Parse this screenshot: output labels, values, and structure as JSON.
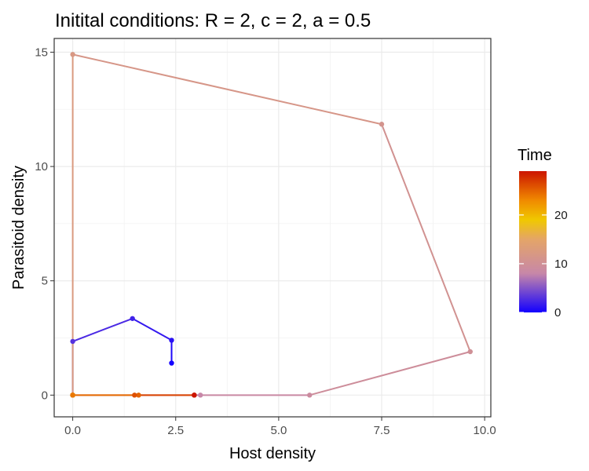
{
  "chart_data": {
    "type": "line",
    "title": "Initital conditions: R = 2, c = 2, a = 0.5",
    "xlabel": "Host density",
    "ylabel": "Parasitoid density",
    "xlim": [
      -0.45,
      10.15
    ],
    "ylim": [
      -0.95,
      15.6
    ],
    "xticks": [
      0,
      2.5,
      5,
      7.5,
      10
    ],
    "xtick_labels": [
      "0.0",
      "2.5",
      "5.0",
      "7.5",
      "10.0"
    ],
    "yticks": [
      0,
      5,
      10,
      15
    ],
    "ytick_labels": [
      "0",
      "5",
      "10",
      "15"
    ],
    "grid": true,
    "legend": {
      "title": "Time",
      "position": "right",
      "ticks": [
        0,
        10,
        20
      ],
      "tick_labels": [
        "0",
        "10",
        "20"
      ],
      "range": [
        0,
        29
      ],
      "gradient": [
        {
          "t": 0,
          "color": "#1200ff"
        },
        {
          "t": 8,
          "color": "#c787a8"
        },
        {
          "t": 15,
          "color": "#e4a568"
        },
        {
          "t": 19,
          "color": "#f0c800"
        },
        {
          "t": 23,
          "color": "#f08a00"
        },
        {
          "t": 29,
          "color": "#cc1500"
        }
      ]
    },
    "series": [
      {
        "points": [
          {
            "t": 0,
            "x": 2.4,
            "y": 1.4
          },
          {
            "t": 1,
            "x": 2.4,
            "y": 2.4
          },
          {
            "t": 2,
            "x": 1.45,
            "y": 3.35
          },
          {
            "t": 3,
            "x": 0.0,
            "y": 2.35
          },
          {
            "t": 4,
            "x": 0.0,
            "y": 0.0
          },
          {
            "t": 5,
            "x": 0.0,
            "y": 0.0
          },
          {
            "t": 6,
            "x": 0.0,
            "y": 0.0
          },
          {
            "t": 7,
            "x": 0.0,
            "y": 0.0
          },
          {
            "t": 8,
            "x": 3.1,
            "y": 0.0
          },
          {
            "t": 9,
            "x": 5.75,
            "y": 0.0
          },
          {
            "t": 10,
            "x": 9.65,
            "y": 1.9
          },
          {
            "t": 11,
            "x": 7.5,
            "y": 11.85
          },
          {
            "t": 12,
            "x": 0.0,
            "y": 14.9
          },
          {
            "t": 13,
            "x": 0.0,
            "y": 0.0
          },
          {
            "t": 14,
            "x": 0.0,
            "y": 0.0
          },
          {
            "t": 15,
            "x": 0.0,
            "y": 0.0
          },
          {
            "t": 16,
            "x": 0.0,
            "y": 0.0
          },
          {
            "t": 17,
            "x": 0.0,
            "y": 0.0
          },
          {
            "t": 18,
            "x": 0.0,
            "y": 0.0
          },
          {
            "t": 19,
            "x": 0.0,
            "y": 0.0
          },
          {
            "t": 20,
            "x": 0.0,
            "y": 0.0
          },
          {
            "t": 21,
            "x": 0.0,
            "y": 0.0
          },
          {
            "t": 22,
            "x": 0.0,
            "y": 0.0
          },
          {
            "t": 23,
            "x": 0.0,
            "y": 0.0
          },
          {
            "t": 24,
            "x": 0.0,
            "y": 0.0
          },
          {
            "t": 25,
            "x": 1.6,
            "y": 0.0
          },
          {
            "t": 26,
            "x": 1.5,
            "y": 0.0
          },
          {
            "t": 27,
            "x": 2.95,
            "y": 0.0
          },
          {
            "t": 28,
            "x": 2.95,
            "y": 0.0
          },
          {
            "t": 29,
            "x": 2.95,
            "y": 0.0
          }
        ]
      }
    ]
  }
}
